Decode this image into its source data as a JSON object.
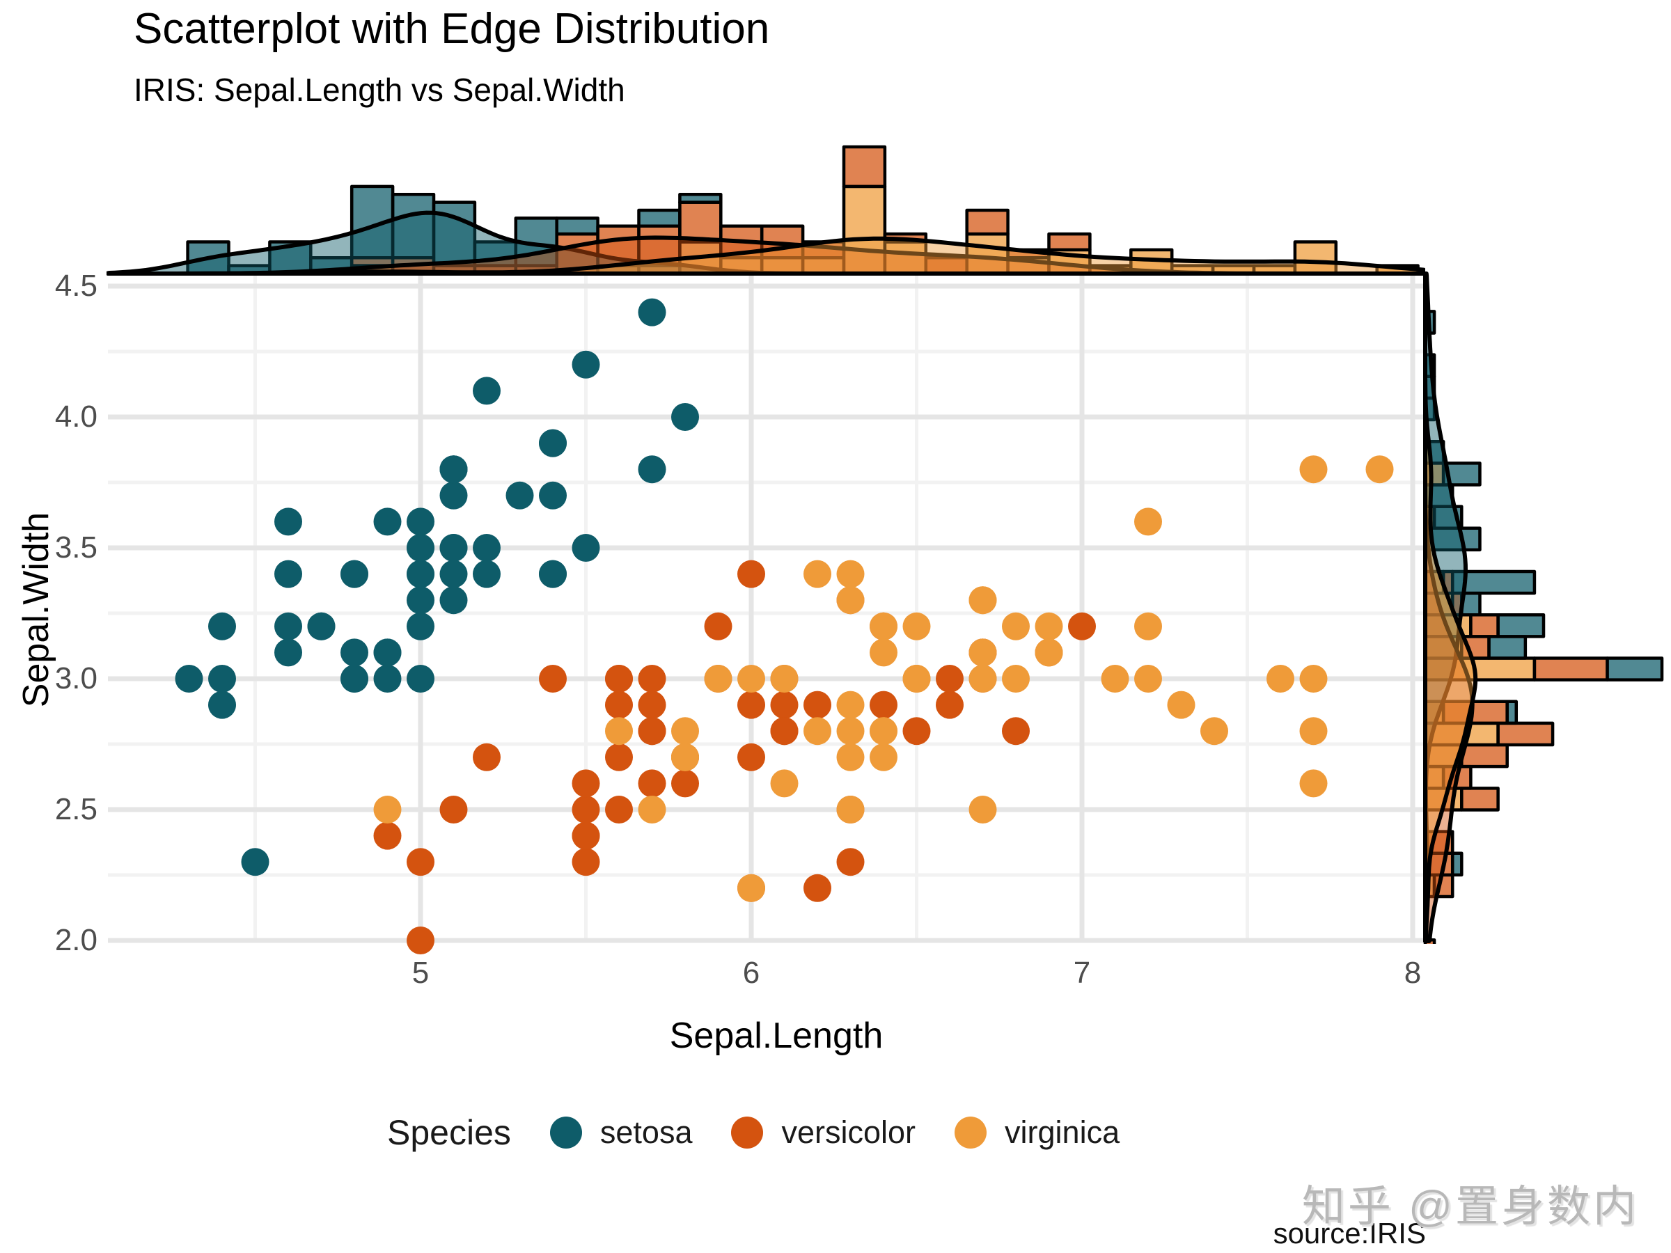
{
  "title": "Scatterplot with Edge Distribution",
  "subtitle": "IRIS: Sepal.Length vs Sepal.Width",
  "caption": "source:IRIS",
  "watermark": "知乎 @置身数内",
  "legend": {
    "title": "Species",
    "items": [
      {
        "label": "setosa",
        "color": "#0e5c69"
      },
      {
        "label": "versicolor",
        "color": "#d4530f"
      },
      {
        "label": "virginica",
        "color": "#ef9b39"
      }
    ]
  },
  "colors": {
    "background": "#ffffff",
    "grid_major": "#e5e5e5",
    "grid_minor": "#f2f2f2",
    "tick_text": "#4d4d4d",
    "bar_stroke": "#000000",
    "density_stroke": "#000000",
    "watermark": "#b8b8b8"
  },
  "chart_data": {
    "type": "scatter",
    "title": "Scatterplot with Edge Distribution",
    "subtitle": "IRIS: Sepal.Length vs Sepal.Width",
    "xlabel": "Sepal.Length",
    "ylabel": "Sepal.Width",
    "xlim": [
      4.06,
      8.03
    ],
    "ylim": [
      1.97,
      4.55
    ],
    "x_ticks": [
      5,
      6,
      7,
      8
    ],
    "x_tick_labels": [
      "5",
      "6",
      "7",
      "8"
    ],
    "x_minor_ticks": [
      4.5,
      5.5,
      6.5,
      7.5
    ],
    "y_ticks": [
      2.0,
      2.5,
      3.0,
      3.5,
      4.0,
      4.5
    ],
    "y_tick_labels": [
      "2.0",
      "2.5",
      "3.0",
      "3.5",
      "4.0",
      "4.5"
    ],
    "y_minor_ticks": [
      2.25,
      2.75,
      3.25,
      3.75,
      4.25
    ],
    "grid": true,
    "legend_position": "bottom",
    "marginals": {
      "top": {
        "type": "stacked-histogram+density",
        "variable": "Sepal.Length",
        "bin_width": 0.124,
        "bin_origin": 4.296
      },
      "right": {
        "type": "stacked-histogram+density",
        "variable": "Sepal.Width",
        "bin_width": 0.0828,
        "bin_origin": 1.9192
      }
    },
    "series": [
      {
        "name": "setosa",
        "color": "#0e5c69",
        "points": [
          [
            5.1,
            3.5
          ],
          [
            4.9,
            3.0
          ],
          [
            4.7,
            3.2
          ],
          [
            4.6,
            3.1
          ],
          [
            5.0,
            3.6
          ],
          [
            5.4,
            3.9
          ],
          [
            4.6,
            3.4
          ],
          [
            5.0,
            3.4
          ],
          [
            4.4,
            2.9
          ],
          [
            4.9,
            3.1
          ],
          [
            5.4,
            3.7
          ],
          [
            4.8,
            3.4
          ],
          [
            4.8,
            3.0
          ],
          [
            4.3,
            3.0
          ],
          [
            5.8,
            4.0
          ],
          [
            5.7,
            4.4
          ],
          [
            5.4,
            3.9
          ],
          [
            5.1,
            3.5
          ],
          [
            5.7,
            3.8
          ],
          [
            5.1,
            3.8
          ],
          [
            5.4,
            3.4
          ],
          [
            5.1,
            3.7
          ],
          [
            4.6,
            3.6
          ],
          [
            5.1,
            3.3
          ],
          [
            4.8,
            3.4
          ],
          [
            5.0,
            3.0
          ],
          [
            5.0,
            3.4
          ],
          [
            5.2,
            3.5
          ],
          [
            5.2,
            3.4
          ],
          [
            4.7,
            3.2
          ],
          [
            4.8,
            3.1
          ],
          [
            5.4,
            3.4
          ],
          [
            5.2,
            4.1
          ],
          [
            5.5,
            4.2
          ],
          [
            4.9,
            3.1
          ],
          [
            5.0,
            3.2
          ],
          [
            5.5,
            3.5
          ],
          [
            4.9,
            3.6
          ],
          [
            4.4,
            3.0
          ],
          [
            5.1,
            3.4
          ],
          [
            5.0,
            3.5
          ],
          [
            4.5,
            2.3
          ],
          [
            4.4,
            3.2
          ],
          [
            5.0,
            3.5
          ],
          [
            5.1,
            3.8
          ],
          [
            4.8,
            3.0
          ],
          [
            5.1,
            3.8
          ],
          [
            4.6,
            3.2
          ],
          [
            5.3,
            3.7
          ],
          [
            5.0,
            3.3
          ]
        ]
      },
      {
        "name": "versicolor",
        "color": "#d4530f",
        "points": [
          [
            7.0,
            3.2
          ],
          [
            6.4,
            3.2
          ],
          [
            6.9,
            3.1
          ],
          [
            5.5,
            2.3
          ],
          [
            6.5,
            2.8
          ],
          [
            5.7,
            2.8
          ],
          [
            6.3,
            3.3
          ],
          [
            4.9,
            2.4
          ],
          [
            6.6,
            2.9
          ],
          [
            5.2,
            2.7
          ],
          [
            5.0,
            2.0
          ],
          [
            5.9,
            3.0
          ],
          [
            6.0,
            2.2
          ],
          [
            6.1,
            2.9
          ],
          [
            5.6,
            2.9
          ],
          [
            6.7,
            3.1
          ],
          [
            5.6,
            3.0
          ],
          [
            5.8,
            2.7
          ],
          [
            6.2,
            2.2
          ],
          [
            5.6,
            2.5
          ],
          [
            5.9,
            3.2
          ],
          [
            6.1,
            2.8
          ],
          [
            6.3,
            2.5
          ],
          [
            6.1,
            2.8
          ],
          [
            6.4,
            2.9
          ],
          [
            6.6,
            3.0
          ],
          [
            6.8,
            2.8
          ],
          [
            6.7,
            3.0
          ],
          [
            6.0,
            2.9
          ],
          [
            5.7,
            2.6
          ],
          [
            5.5,
            2.4
          ],
          [
            5.5,
            2.4
          ],
          [
            5.8,
            2.7
          ],
          [
            6.0,
            2.7
          ],
          [
            5.4,
            3.0
          ],
          [
            6.0,
            3.4
          ],
          [
            6.7,
            3.1
          ],
          [
            6.3,
            2.3
          ],
          [
            5.6,
            3.0
          ],
          [
            5.5,
            2.5
          ],
          [
            5.5,
            2.6
          ],
          [
            6.1,
            3.0
          ],
          [
            5.8,
            2.6
          ],
          [
            5.0,
            2.3
          ],
          [
            5.6,
            2.7
          ],
          [
            5.7,
            3.0
          ],
          [
            5.7,
            2.9
          ],
          [
            6.2,
            2.9
          ],
          [
            5.1,
            2.5
          ],
          [
            5.7,
            2.8
          ]
        ]
      },
      {
        "name": "virginica",
        "color": "#ef9b39",
        "points": [
          [
            6.3,
            3.3
          ],
          [
            5.8,
            2.7
          ],
          [
            7.1,
            3.0
          ],
          [
            6.3,
            2.9
          ],
          [
            6.5,
            3.0
          ],
          [
            7.6,
            3.0
          ],
          [
            4.9,
            2.5
          ],
          [
            7.3,
            2.9
          ],
          [
            6.7,
            2.5
          ],
          [
            7.2,
            3.6
          ],
          [
            6.5,
            3.2
          ],
          [
            6.4,
            2.7
          ],
          [
            6.8,
            3.0
          ],
          [
            5.7,
            2.5
          ],
          [
            5.8,
            2.8
          ],
          [
            6.4,
            3.2
          ],
          [
            6.5,
            3.0
          ],
          [
            7.7,
            3.8
          ],
          [
            7.7,
            2.6
          ],
          [
            6.0,
            2.2
          ],
          [
            6.9,
            3.2
          ],
          [
            5.6,
            2.8
          ],
          [
            7.7,
            2.8
          ],
          [
            6.3,
            2.7
          ],
          [
            6.7,
            3.3
          ],
          [
            7.2,
            3.2
          ],
          [
            6.2,
            2.8
          ],
          [
            6.1,
            3.0
          ],
          [
            6.4,
            2.8
          ],
          [
            7.2,
            3.0
          ],
          [
            7.4,
            2.8
          ],
          [
            7.9,
            3.8
          ],
          [
            6.4,
            2.8
          ],
          [
            6.3,
            2.8
          ],
          [
            6.1,
            2.6
          ],
          [
            7.7,
            3.0
          ],
          [
            6.3,
            3.4
          ],
          [
            6.4,
            3.1
          ],
          [
            6.0,
            3.0
          ],
          [
            6.9,
            3.1
          ],
          [
            6.7,
            3.1
          ],
          [
            6.9,
            3.1
          ],
          [
            5.8,
            2.7
          ],
          [
            6.8,
            3.2
          ],
          [
            6.7,
            3.3
          ],
          [
            6.7,
            3.0
          ],
          [
            6.3,
            2.5
          ],
          [
            6.5,
            3.0
          ],
          [
            6.2,
            3.4
          ],
          [
            5.9,
            3.0
          ]
        ]
      }
    ]
  }
}
